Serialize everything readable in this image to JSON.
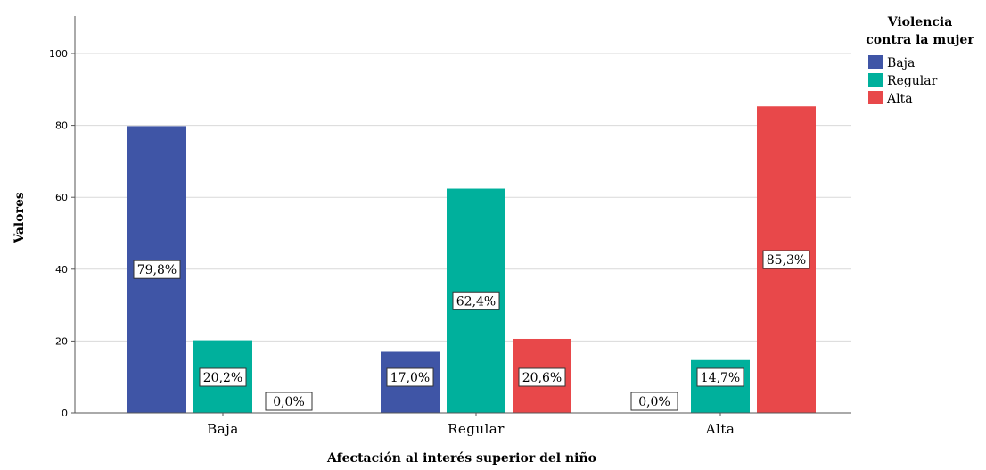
{
  "chart_data": {
    "type": "bar",
    "categories": [
      "Baja",
      "Regular",
      "Alta"
    ],
    "series": [
      {
        "name": "Baja",
        "color": "#3f55a6",
        "values": [
          79.8,
          17.0,
          0.0
        ],
        "labels": [
          "79,8%",
          "17,0%",
          "0,0%"
        ]
      },
      {
        "name": "Regular",
        "color": "#00b09c",
        "values": [
          20.2,
          62.4,
          14.7
        ],
        "labels": [
          "20,2%",
          "62,4%",
          "14,7%"
        ]
      },
      {
        "name": "Alta",
        "color": "#e8484a",
        "values": [
          0.0,
          20.6,
          85.3
        ],
        "labels": [
          "0,0%",
          "20,6%",
          "85,3%"
        ]
      }
    ],
    "xlabel": "Afectación al interés superior del niño",
    "ylabel": "Valores",
    "ylim": [
      0,
      110
    ],
    "yticks": [
      0,
      20,
      40,
      60,
      80,
      100
    ],
    "grid": true,
    "legend": {
      "title_lines": [
        "Violencia",
        "contra la mujer"
      ],
      "placement": "top-right"
    }
  }
}
